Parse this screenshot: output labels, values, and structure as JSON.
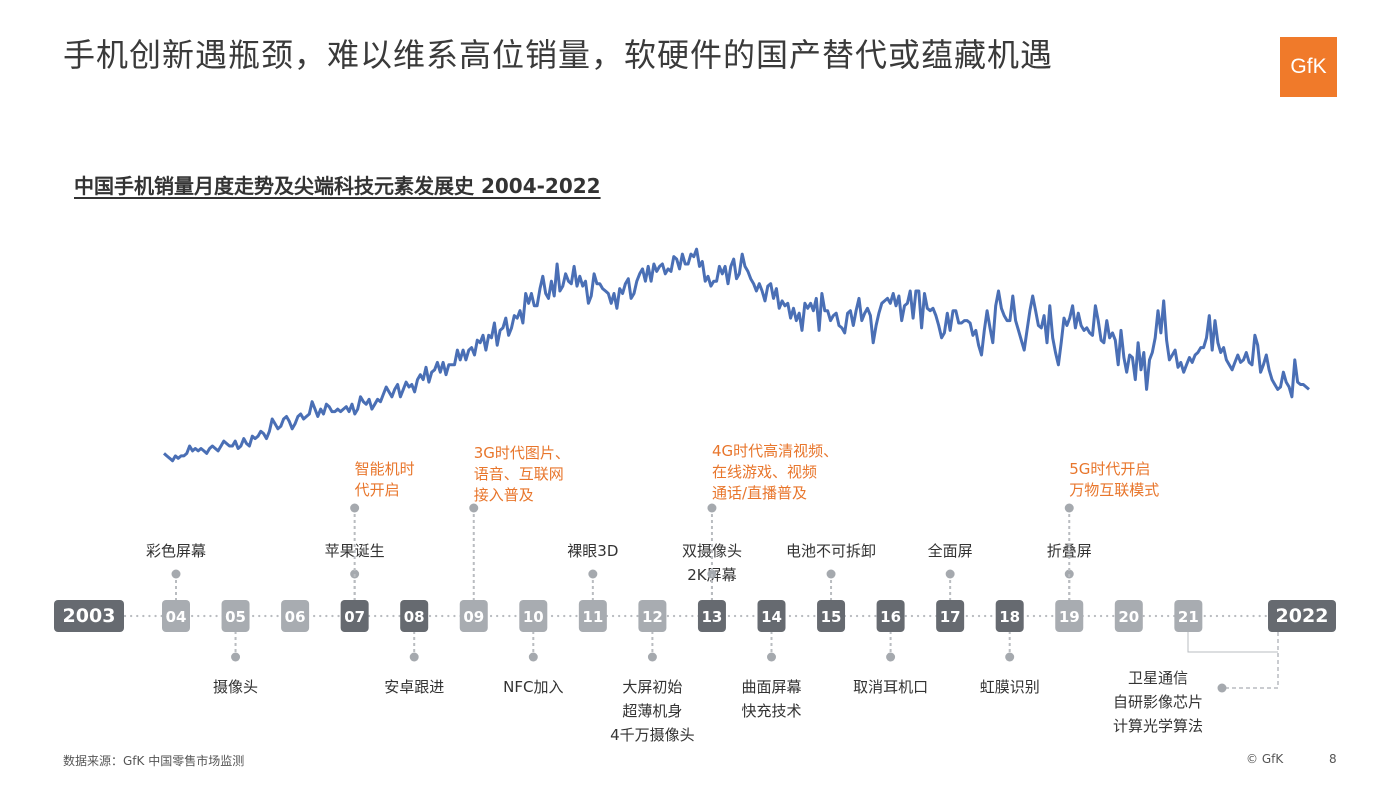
{
  "page": {
    "title": "手机创新遇瓶颈，难以维系高位销量，软硬件的国产替代或蕴藏机遇",
    "logo_text": "GfK",
    "footer_source": "数据来源：GfK 中国零售市场监测",
    "footer_copyright": "© GfK",
    "page_number": "8"
  },
  "colors": {
    "line": "#4a6fb5",
    "orange_text": "#e8762c",
    "timeline_dark": "#666a70",
    "timeline_light": "#a8acb1",
    "logo": "#f07a2a"
  },
  "chart_data": {
    "type": "line",
    "title": "中国手机销量月度走势及尖端科技元素发展史 2004-2022",
    "x_start": "2004-01",
    "x_end": "2022-03",
    "y_axis_shown": false,
    "grid": false,
    "series": [
      {
        "values": [
          10,
          9,
          8,
          7,
          9,
          8,
          9,
          9,
          10,
          13,
          11,
          12,
          11,
          12,
          11,
          10,
          12,
          13,
          12,
          11,
          13,
          15,
          14,
          13,
          13,
          15,
          12,
          13,
          16,
          14,
          13,
          17,
          16,
          17,
          19,
          18,
          16,
          19,
          24,
          22,
          20,
          21,
          24,
          25,
          23,
          20,
          22,
          25,
          26,
          24,
          25,
          26,
          31,
          28,
          25,
          28,
          26,
          30,
          29,
          27,
          27,
          28,
          27,
          28,
          29,
          27,
          30,
          26,
          28,
          33,
          31,
          30,
          32,
          28,
          30,
          32,
          31,
          34,
          37,
          35,
          33,
          36,
          38,
          33,
          36,
          39,
          37,
          38,
          35,
          40,
          42,
          40,
          45,
          39,
          43,
          44,
          47,
          43,
          47,
          42,
          46,
          46,
          46,
          52,
          48,
          52,
          48,
          52,
          53,
          50,
          56,
          55,
          58,
          52,
          58,
          57,
          63,
          54,
          60,
          61,
          65,
          58,
          61,
          66,
          65,
          68,
          63,
          75,
          71,
          75,
          70,
          70,
          77,
          82,
          75,
          73,
          80,
          74,
          87,
          76,
          78,
          83,
          80,
          79,
          86,
          78,
          82,
          78,
          80,
          71,
          74,
          83,
          79,
          79,
          77,
          76,
          75,
          71,
          75,
          69,
          77,
          75,
          79,
          81,
          73,
          75,
          80,
          83,
          85,
          80,
          86,
          80,
          87,
          84,
          86,
          87,
          83,
          85,
          84,
          90,
          89,
          85,
          91,
          87,
          87,
          91,
          90,
          93,
          86,
          88,
          80,
          82,
          78,
          80,
          80,
          86,
          83,
          86,
          79,
          86,
          89,
          81,
          83,
          91,
          86,
          84,
          81,
          79,
          76,
          79,
          76,
          72,
          78,
          79,
          73,
          77,
          69,
          72,
          70,
          71,
          65,
          69,
          64,
          67,
          60,
          71,
          69,
          71,
          68,
          73,
          60,
          75,
          68,
          68,
          64,
          66,
          67,
          62,
          61,
          59,
          67,
          68,
          62,
          68,
          73,
          64,
          67,
          69,
          66,
          55,
          62,
          67,
          71,
          72,
          73,
          71,
          75,
          70,
          74,
          64,
          70,
          71,
          76,
          65,
          76,
          76,
          61,
          75,
          69,
          68,
          69,
          66,
          62,
          57,
          59,
          67,
          60,
          68,
          68,
          63,
          63,
          64,
          64,
          63,
          58,
          60,
          54,
          50,
          60,
          68,
          61,
          55,
          70,
          76,
          69,
          66,
          64,
          64,
          74,
          64,
          60,
          56,
          52,
          60,
          68,
          74,
          68,
          62,
          61,
          66,
          55,
          70,
          57,
          51,
          46,
          55,
          65,
          62,
          65,
          70,
          61,
          67,
          62,
          60,
          61,
          59,
          58,
          70,
          64,
          56,
          55,
          64,
          57,
          59,
          56,
          46,
          60,
          49,
          43,
          50,
          49,
          40,
          55,
          44,
          51,
          36,
          48,
          51,
          57,
          68,
          59,
          72,
          56,
          48,
          50,
          52,
          45,
          47,
          43,
          46,
          49,
          47,
          50,
          51,
          53,
          53,
          57,
          66,
          52,
          64,
          55,
          51,
          53,
          48,
          46,
          44,
          47,
          50,
          47,
          48,
          51,
          47,
          46,
          58,
          54,
          43,
          46,
          50,
          44,
          40,
          38,
          36,
          37,
          43,
          39,
          37,
          33,
          48,
          39,
          38,
          38,
          37,
          36
        ]
      }
    ],
    "timeline": {
      "start_label": "2003",
      "end_label": "2022",
      "ticks": [
        {
          "label": "04",
          "style": "light"
        },
        {
          "label": "05",
          "style": "light"
        },
        {
          "label": "06",
          "style": "light"
        },
        {
          "label": "07",
          "style": "dark"
        },
        {
          "label": "08",
          "style": "dark"
        },
        {
          "label": "09",
          "style": "light"
        },
        {
          "label": "10",
          "style": "light"
        },
        {
          "label": "11",
          "style": "light"
        },
        {
          "label": "12",
          "style": "light"
        },
        {
          "label": "13",
          "style": "dark"
        },
        {
          "label": "14",
          "style": "dark"
        },
        {
          "label": "15",
          "style": "dark"
        },
        {
          "label": "16",
          "style": "dark"
        },
        {
          "label": "17",
          "style": "dark"
        },
        {
          "label": "18",
          "style": "dark"
        },
        {
          "label": "19",
          "style": "light"
        },
        {
          "label": "20",
          "style": "light"
        },
        {
          "label": "21",
          "style": "light"
        }
      ]
    },
    "events_above": [
      {
        "tick": "04",
        "lines": [
          "彩色屏幕"
        ]
      },
      {
        "tick": "07",
        "lines": [
          "苹果诞生"
        ]
      },
      {
        "tick": "11",
        "lines": [
          "裸眼3D"
        ]
      },
      {
        "tick": "13",
        "lines": [
          "双摄像头",
          "2K屏幕"
        ]
      },
      {
        "tick": "15",
        "lines": [
          "电池不可拆卸"
        ]
      },
      {
        "tick": "17",
        "lines": [
          "全面屏"
        ]
      },
      {
        "tick": "19",
        "lines": [
          "折叠屏"
        ]
      }
    ],
    "events_below": [
      {
        "tick": "05",
        "lines": [
          "摄像头"
        ]
      },
      {
        "tick": "08",
        "lines": [
          "安卓跟进"
        ]
      },
      {
        "tick": "10",
        "lines": [
          "NFC加入"
        ]
      },
      {
        "tick": "12",
        "lines": [
          "大屏初始",
          "超薄机身",
          "4千万摄像头"
        ]
      },
      {
        "tick": "14",
        "lines": [
          "曲面屏幕",
          "快充技术"
        ]
      },
      {
        "tick": "16",
        "lines": [
          "取消耳机口"
        ]
      },
      {
        "tick": "18",
        "lines": [
          "虹膜识别"
        ]
      },
      {
        "tick": "2022",
        "lines": [
          "卫星通信",
          "自研影像芯片",
          "计算光学算法"
        ]
      }
    ],
    "eras": [
      {
        "tick": "07",
        "lines": [
          "智能机时",
          "代开启"
        ]
      },
      {
        "tick": "09",
        "lines": [
          "3G时代图片、",
          "语音、互联网",
          "接入普及"
        ]
      },
      {
        "tick": "13",
        "lines": [
          "4G时代高清视频、",
          "在线游戏、视频",
          "通话/直播普及"
        ]
      },
      {
        "tick": "19",
        "lines": [
          "5G时代开启",
          "万物互联模式"
        ]
      }
    ]
  }
}
